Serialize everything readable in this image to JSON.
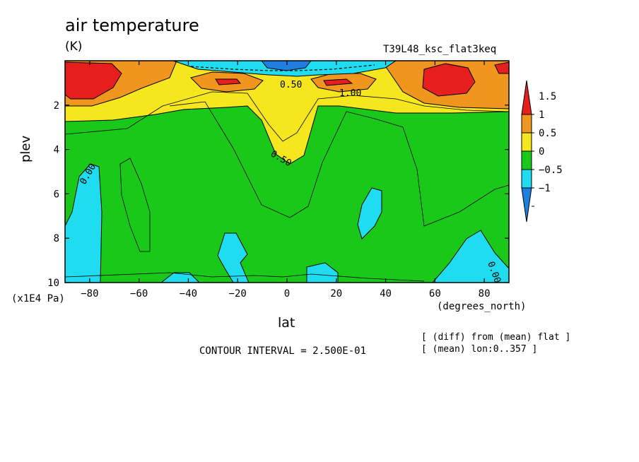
{
  "header": {
    "title": "air temperature",
    "units": "(K)",
    "run_label": "T39L48_ksc_flat3keq"
  },
  "footer": {
    "contour_interval": "CONTOUR INTERVAL = 2.500E-01",
    "note_diff": "[ (diff) from (mean) flat ]",
    "note_mean": "[ (mean) lon:0..357 ]"
  },
  "chart_data": {
    "type": "heatmap",
    "title": "air temperature",
    "subtitle": "(K)",
    "xlabel": "lat",
    "ylabel": "plev",
    "x_units": "(degrees_north)",
    "y_units": "(x1E4 Pa)",
    "xlim": [
      -90,
      90
    ],
    "ylim": [
      10,
      0
    ],
    "x_ticks": [
      -80,
      -60,
      -40,
      -20,
      0,
      20,
      40,
      60,
      80
    ],
    "y_ticks": [
      2,
      4,
      6,
      8,
      10
    ],
    "contour_interval": 0.25,
    "contour_labels": [
      "0.00",
      "0.50",
      "1.00",
      "0.50",
      "0.00"
    ],
    "colorbar": {
      "levels": [
        -1,
        -0.5,
        0,
        0.5,
        1,
        1.5
      ],
      "tick_labels": [
        "1.5",
        "1",
        "0.5",
        "0",
        "−0.5",
        "−1"
      ],
      "colors": [
        "#1f7fe0",
        "#1fdcf0",
        "#19c819",
        "#f5e61e",
        "#f0961e",
        "#e61e1e"
      ]
    }
  }
}
